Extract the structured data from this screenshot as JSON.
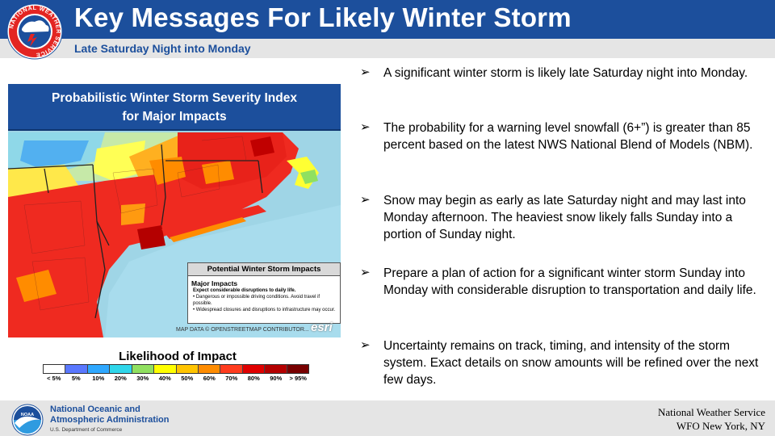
{
  "header": {
    "title": "Key Messages For Likely Winter Storm",
    "subtitle": "Late Saturday Night into Monday",
    "logo_icon": "nws-logo-icon",
    "logo_ring_text": "NATIONAL WEATHER SERVICE"
  },
  "map": {
    "title_line1": "Probabilistic  Winter Storm Severity Index",
    "title_line2": "for Major Impacts",
    "impact_box": {
      "heading": "Potential Winter Storm Impacts",
      "level": "Major Impacts",
      "expect": "Expect considerable disruptions to daily life.",
      "bullet1": "• Dangerous or impossible driving conditions. Avoid travel if possible.",
      "bullet2": "• Widespread closures and disruptions to infrastructure may occur."
    },
    "credit": "MAP DATA © OPENSTREETMAP CONTRIBUTOR...",
    "esri": "esri"
  },
  "legend": {
    "title": "Likelihood of Impact",
    "categories": [
      "< 5%",
      "5%",
      "10%",
      "20%",
      "30%",
      "40%",
      "50%",
      "60%",
      "70%",
      "80%",
      "90%",
      "> 95%"
    ],
    "colors": [
      "#ffffff",
      "#5a78ff",
      "#2fa8ff",
      "#2fd6ea",
      "#90e060",
      "#ffff00",
      "#ffc400",
      "#ff8c00",
      "#ff3c1e",
      "#e00000",
      "#b40000",
      "#780000"
    ]
  },
  "bullets": [
    "A significant winter storm is likely late Saturday night into Monday.",
    "The probability for a warning level snowfall (6+”) is greater than 85 percent based on the latest NWS National Blend of Models (NBM).",
    "Snow may begin as early as late Saturday night and may last into Monday afternoon. The heaviest snow likely falls Sunday into a portion of Sunday night.",
    "Prepare a plan of action for a significant winter storm Sunday into Monday with considerable disruption to transportation and daily life.",
    "Uncertainty remains on track, timing, and intensity of the storm system. Exact details on snow amounts will be refined over the next few days."
  ],
  "footer": {
    "noaa_icon": "noaa-logo-icon",
    "noaa_line1": "National Oceanic and",
    "noaa_line2": "Atmospheric Administration",
    "noaa_dept": "U.S. Department of Commerce",
    "office_line1": "National Weather Service",
    "office_line2": "WFO New York, NY"
  },
  "colors": {
    "brand_blue": "#1c4f9c",
    "bar_gray": "#e5e5e5"
  }
}
